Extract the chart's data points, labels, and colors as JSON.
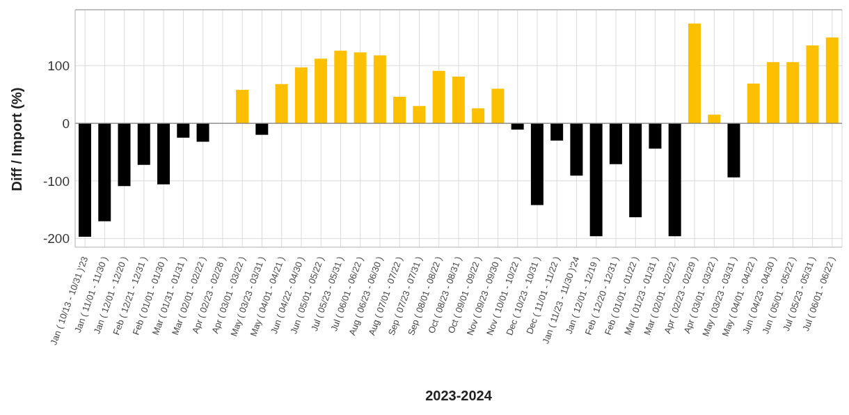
{
  "chart_data": {
    "type": "bar",
    "xlabel": "2023-2024",
    "ylabel": "Diff / Import (%)",
    "categories": [
      "Jan ( 10/13 - 10/31 )'23",
      "Jan ( 11/01 - 11/30 )",
      "Jan ( 12/01 - 12/20 )",
      "Feb ( 12/21 - 12/31 )",
      "Feb ( 01/01 - 01/30 )",
      "Mar ( 01/31 - 01/31 )",
      "Mar ( 02/01 - 02/22 )",
      "Apr ( 02/23 - 02/28 )",
      "Apr ( 03/01 - 03/22 )",
      "May ( 03/23 - 03/31 )",
      "May ( 04/01 - 04/21 )",
      "Jun ( 04/22 - 04/30 )",
      "Jun ( 05/01 - 05/22 )",
      "Jul ( 05/23 - 05/31 )",
      "Jul ( 06/01 - 06/22 )",
      "Aug ( 06/23 - 06/30 )",
      "Aug ( 07/01 - 07/22 )",
      "Sep ( 07/23 - 07/31 )",
      "Sep ( 08/01 - 08/22 )",
      "Oct ( 08/23 - 08/31 )",
      "Oct ( 09/01 - 09/22 )",
      "Nov ( 09/23 - 09/30 )",
      "Nov ( 10/01 - 10/22 )",
      "Dec ( 10/23 - 10/31 )",
      "Dec ( 11/01 - 11/22 )",
      "Jan ( 11/23 - 11/30 )'24",
      "Jan ( 12/01 - 12/19 )",
      "Feb ( 12/20 - 12/31 )",
      "Feb ( 01/01 - 01/22 )",
      "Mar ( 01/23 - 01/31 )",
      "Mar ( 02/01 - 02/22 )",
      "Apr ( 02/23 - 02/29 )",
      "Apr ( 03/01 - 03/22 )",
      "May ( 03/23 - 03/31 )",
      "May ( 04/01 - 04/22 )",
      "Jun ( 04/23 - 04/30 )",
      "Jun ( 05/01 - 05/22 )",
      "Jul ( 05/23 - 05/31 )",
      "Jul ( 06/01 - 06/22 )"
    ],
    "values": [
      -197,
      -170,
      -109,
      -72,
      -106,
      -25,
      -32,
      null,
      58,
      -20,
      68,
      97,
      112,
      126,
      123,
      118,
      46,
      30,
      91,
      81,
      26,
      60,
      -11,
      -142,
      -30,
      -91,
      -196,
      -71,
      -163,
      -44,
      -196,
      173,
      15,
      -94,
      69,
      106,
      106,
      135,
      149
    ],
    "colors": [
      "#000000",
      "#000000",
      "#000000",
      "#000000",
      "#000000",
      "#000000",
      "#000000",
      "#000000",
      "#fdc000",
      "#000000",
      "#fdc000",
      "#fdc000",
      "#fdc000",
      "#fdc000",
      "#fdc000",
      "#fdc000",
      "#fdc000",
      "#fdc000",
      "#fdc000",
      "#fdc000",
      "#fdc000",
      "#fdc000",
      "#000000",
      "#000000",
      "#000000",
      "#000000",
      "#000000",
      "#000000",
      "#000000",
      "#000000",
      "#000000",
      "#fdc000",
      "#fdc000",
      "#000000",
      "#fdc000",
      "#fdc000",
      "#fdc000",
      "#fdc000",
      "#fdc000"
    ],
    "ylim": [
      -215,
      197
    ],
    "yticks": [
      -200,
      -100,
      0,
      100
    ],
    "grid": true,
    "ref_lines": [
      {
        "axis": "y",
        "value": 0,
        "color": "#808080"
      }
    ]
  }
}
